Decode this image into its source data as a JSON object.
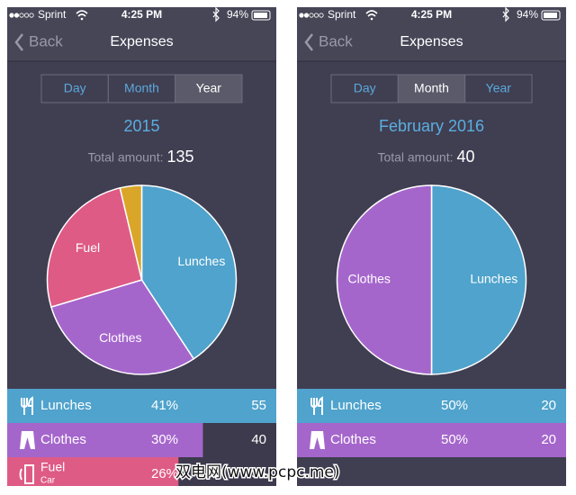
{
  "chart_data": [
    {
      "type": "pie",
      "categories": [
        "Lunches",
        "Clothes",
        "Fuel",
        null
      ],
      "values": [
        55,
        40,
        35,
        5
      ],
      "colors": [
        "#4fa3cc",
        "#a566cc",
        "#de5b86",
        "#d9a62a"
      ]
    },
    {
      "type": "pie",
      "categories": [
        "Lunches",
        "Clothes"
      ],
      "values": [
        20,
        20
      ],
      "colors": [
        "#4fa3cc",
        "#a566cc"
      ]
    }
  ],
  "screens": [
    {
      "carrier": "Sprint",
      "time": "4:25 PM",
      "battery": "94%",
      "back": "Back",
      "nav_title": "Expenses",
      "segments": [
        "Day",
        "Month",
        "Year"
      ],
      "selected_segment": 2,
      "period": "2015",
      "total_label": "Total amount:",
      "total": 135,
      "rows": [
        {
          "percent": "41%"
        },
        {
          "percent": "30%"
        },
        {
          "percent": "26%",
          "subtitle": "Car"
        }
      ]
    },
    {
      "carrier": "Sprint",
      "time": "4:25 PM",
      "battery": "94%",
      "back": "Back",
      "nav_title": "Expenses",
      "segments": [
        "Day",
        "Month",
        "Year"
      ],
      "selected_segment": 1,
      "period": "February 2016",
      "total_label": "Total amount:",
      "total": 40,
      "rows": [
        {
          "percent": "50%"
        },
        {
          "percent": "50%"
        }
      ]
    }
  ],
  "watermark": "双电网(www.pcpc.me)"
}
